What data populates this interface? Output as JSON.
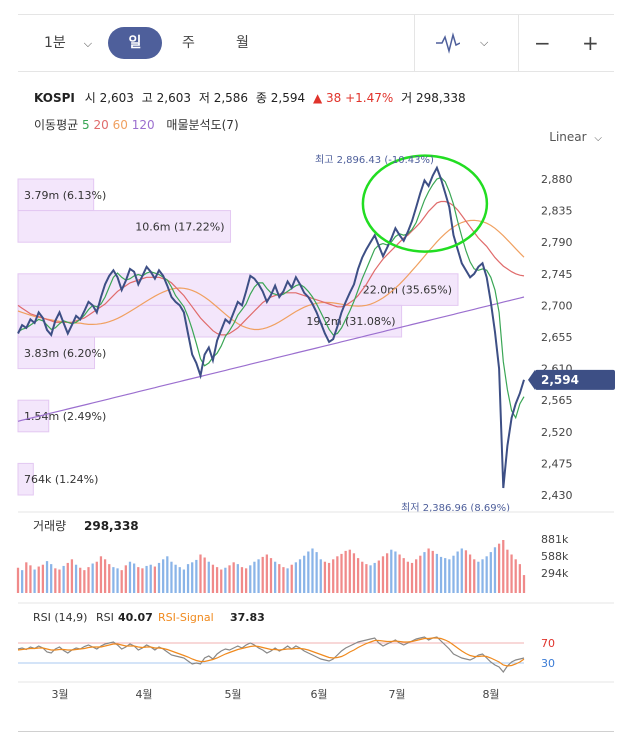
{
  "toolbar": {
    "interval_label": "1분",
    "day_label": "일",
    "week_label": "주",
    "month_label": "월",
    "minus_label": "−",
    "plus_label": "+"
  },
  "quote": {
    "name": "KOSPI",
    "open_label": "시",
    "open": "2,603",
    "high_label": "고",
    "high": "2,603",
    "low_label": "저",
    "low": "2,586",
    "close_label": "종",
    "close": "2,594",
    "change": "▲ 38 +1.47%",
    "volume_label": "거",
    "volume": "298,338"
  },
  "ma_legend": {
    "label": "이동평균",
    "p5": "5",
    "p20": "20",
    "p60": "60",
    "p120": "120",
    "vp_label": "매물분석도(7)"
  },
  "scale_label": "Linear",
  "colors": {
    "price": "#3d4f85",
    "ma5": "#3aa655",
    "ma20": "#e06b6b",
    "ma60": "#f0a060",
    "ma120": "#9b6fcf",
    "highlight": "#22dd22",
    "vol_up": "#f08a8a",
    "vol_down": "#8ab4e8",
    "rsi": "#888888",
    "rsi_signal": "#f08a1e",
    "current_tag": "#3d4f85"
  },
  "chart_data": {
    "type": "line",
    "y_ticks": [
      "2,880",
      "2,835",
      "2,790",
      "2,745",
      "2,700",
      "2,655",
      "2,610",
      "2,565",
      "2,520",
      "2,475",
      "2,430"
    ],
    "ylim": [
      2430,
      2880
    ],
    "x_ticks": [
      "3월",
      "4월",
      "5월",
      "6월",
      "7월",
      "8월"
    ],
    "current_price": "2,594",
    "high_note": "최고 2,896.43 (-10.43%)",
    "low_note": "최저 2,386.96 (8.69%)",
    "volume_profile": [
      {
        "label": "3.79m (6.13%)",
        "price_from": 2835,
        "price_to": 2880,
        "share": 6.13
      },
      {
        "label": "10.6m (17.22%)",
        "price_from": 2790,
        "price_to": 2835,
        "share": 17.22
      },
      {
        "label": "22.0m (35.65%)",
        "price_from": 2700,
        "price_to": 2745,
        "share": 35.65
      },
      {
        "label": "19.2m (31.08%)",
        "price_from": 2655,
        "price_to": 2700,
        "share": 31.08
      },
      {
        "label": "3.83m (6.20%)",
        "price_from": 2610,
        "price_to": 2655,
        "share": 6.2
      },
      {
        "label": "1.54m (2.49%)",
        "price_from": 2520,
        "price_to": 2565,
        "share": 2.49
      },
      {
        "label": "764k (1.24%)",
        "price_from": 2430,
        "price_to": 2475,
        "share": 1.24
      }
    ],
    "price_series": [
      2660,
      2672,
      2668,
      2680,
      2675,
      2690,
      2682,
      2665,
      2658,
      2678,
      2690,
      2675,
      2660,
      2672,
      2685,
      2680,
      2692,
      2705,
      2700,
      2690,
      2712,
      2730,
      2742,
      2750,
      2740,
      2722,
      2735,
      2752,
      2748,
      2730,
      2742,
      2755,
      2748,
      2738,
      2750,
      2742,
      2728,
      2712,
      2705,
      2700,
      2690,
      2660,
      2630,
      2618,
      2600,
      2630,
      2640,
      2622,
      2650,
      2665,
      2680,
      2675,
      2690,
      2705,
      2700,
      2720,
      2742,
      2738,
      2730,
      2720,
      2705,
      2715,
      2728,
      2712,
      2720,
      2734,
      2725,
      2740,
      2730,
      2718,
      2712,
      2702,
      2690,
      2675,
      2660,
      2648,
      2652,
      2670,
      2690,
      2705,
      2718,
      2730,
      2752,
      2768,
      2780,
      2790,
      2800,
      2785,
      2770,
      2782,
      2795,
      2810,
      2800,
      2792,
      2805,
      2820,
      2840,
      2860,
      2878,
      2870,
      2885,
      2896,
      2880,
      2860,
      2840,
      2800,
      2780,
      2760,
      2750,
      2740,
      2745,
      2755,
      2760,
      2740,
      2705,
      2662,
      2610,
      2440,
      2500,
      2540,
      2560,
      2575,
      2594
    ],
    "ma5_series": [
      2662,
      2666,
      2668,
      2672,
      2676,
      2680,
      2678,
      2672,
      2666,
      2668,
      2674,
      2678,
      2676,
      2674,
      2676,
      2680,
      2686,
      2694,
      2700,
      2698,
      2702,
      2712,
      2726,
      2740,
      2746,
      2740,
      2736,
      2738,
      2742,
      2744,
      2742,
      2746,
      2748,
      2746,
      2744,
      2740,
      2736,
      2726,
      2714,
      2706,
      2698,
      2684,
      2666,
      2646,
      2624,
      2614,
      2618,
      2626,
      2632,
      2642,
      2656,
      2664,
      2674,
      2686,
      2694,
      2702,
      2716,
      2726,
      2732,
      2732,
      2724,
      2718,
      2716,
      2714,
      2716,
      2720,
      2724,
      2728,
      2730,
      2726,
      2720,
      2712,
      2702,
      2690,
      2678,
      2666,
      2658,
      2660,
      2668,
      2680,
      2692,
      2706,
      2722,
      2738,
      2752,
      2766,
      2780,
      2786,
      2788,
      2786,
      2790,
      2798,
      2802,
      2800,
      2802,
      2808,
      2818,
      2834,
      2850,
      2862,
      2872,
      2880,
      2882,
      2876,
      2862,
      2844,
      2820,
      2798,
      2778,
      2762,
      2752,
      2750,
      2752,
      2750,
      2740,
      2722,
      2690,
      2620,
      2580,
      2550,
      2540,
      2560,
      2570
    ],
    "ma20_series": [
      2700,
      2696,
      2692,
      2688,
      2686,
      2684,
      2682,
      2680,
      2678,
      2676,
      2676,
      2676,
      2676,
      2676,
      2678,
      2680,
      2682,
      2686,
      2690,
      2694,
      2698,
      2702,
      2708,
      2714,
      2720,
      2724,
      2728,
      2732,
      2734,
      2736,
      2738,
      2740,
      2740,
      2740,
      2740,
      2738,
      2736,
      2732,
      2726,
      2720,
      2714,
      2706,
      2698,
      2690,
      2682,
      2676,
      2670,
      2664,
      2660,
      2658,
      2658,
      2660,
      2664,
      2668,
      2674,
      2680,
      2686,
      2692,
      2698,
      2704,
      2708,
      2712,
      2714,
      2716,
      2718,
      2718,
      2718,
      2718,
      2716,
      2714,
      2712,
      2710,
      2708,
      2706,
      2704,
      2702,
      2700,
      2698,
      2698,
      2700,
      2704,
      2708,
      2714,
      2722,
      2730,
      2740,
      2750,
      2758,
      2766,
      2772,
      2778,
      2784,
      2790,
      2796,
      2800,
      2806,
      2812,
      2818,
      2826,
      2834,
      2840,
      2846,
      2848,
      2848,
      2846,
      2842,
      2836,
      2828,
      2820,
      2812,
      2804,
      2796,
      2790,
      2784,
      2776,
      2768,
      2762,
      2756,
      2752,
      2748,
      2745,
      2743,
      2742
    ]
  },
  "volume_panel": {
    "label": "거래량",
    "value": "298,338",
    "y_ticks": [
      "881k",
      "588k",
      "294k"
    ],
    "volumes": [
      420,
      380,
      510,
      460,
      390,
      440,
      470,
      530,
      480,
      410,
      390,
      450,
      500,
      560,
      470,
      420,
      380,
      430,
      490,
      520,
      610,
      560,
      480,
      430,
      410,
      380,
      460,
      520,
      490,
      430,
      410,
      450,
      470,
      440,
      500,
      560,
      610,
      520,
      470,
      430,
      390,
      480,
      510,
      550,
      640,
      590,
      520,
      470,
      430,
      390,
      420,
      460,
      510,
      480,
      430,
      410,
      460,
      520,
      560,
      600,
      640,
      580,
      520,
      480,
      430,
      410,
      470,
      510,
      560,
      620,
      690,
      740,
      680,
      560,
      520,
      500,
      560,
      610,
      650,
      700,
      720,
      660,
      580,
      520,
      480,
      460,
      500,
      540,
      610,
      660,
      720,
      690,
      640,
      580,
      520,
      500,
      560,
      620,
      680,
      740,
      700,
      650,
      600,
      580,
      560,
      620,
      690,
      740,
      710,
      640,
      560,
      520,
      560,
      610,
      680,
      760,
      820,
      881,
      720,
      640,
      560,
      480,
      298
    ],
    "up": [
      1,
      0,
      1,
      1,
      0,
      1,
      1,
      0,
      0,
      1,
      1,
      0,
      1,
      1,
      0,
      1,
      1,
      1,
      0,
      1,
      1,
      1,
      1,
      0,
      0,
      1,
      1,
      0,
      0,
      1,
      1,
      0,
      0,
      1,
      0,
      0,
      0,
      0,
      0,
      0,
      0,
      0,
      0,
      0,
      1,
      1,
      0,
      1,
      1,
      1,
      0,
      1,
      1,
      0,
      1,
      1,
      0,
      0,
      0,
      1,
      1,
      1,
      0,
      1,
      1,
      0,
      1,
      0,
      0,
      0,
      0,
      0,
      0,
      0,
      1,
      1,
      1,
      1,
      1,
      1,
      1,
      1,
      1,
      1,
      1,
      0,
      0,
      1,
      1,
      1,
      0,
      0,
      1,
      1,
      1,
      1,
      1,
      1,
      0,
      1,
      1,
      0,
      0,
      0,
      0,
      0,
      0,
      0,
      1,
      1,
      1,
      0,
      0,
      0,
      0,
      0,
      1,
      1,
      1,
      1,
      1,
      1,
      1
    ]
  },
  "rsi_panel": {
    "label": "RSI (14,9)",
    "rsi_label": "RSI",
    "rsi_value": "40.07",
    "signal_label": "RSI-Signal",
    "signal_value": "37.83",
    "level_high": "70",
    "level_low": "30",
    "rsi_series": [
      58,
      60,
      57,
      62,
      59,
      64,
      60,
      52,
      50,
      58,
      62,
      55,
      50,
      56,
      60,
      58,
      63,
      66,
      62,
      58,
      64,
      68,
      70,
      72,
      66,
      58,
      62,
      68,
      64,
      56,
      60,
      66,
      62,
      56,
      62,
      58,
      52,
      46,
      44,
      42,
      40,
      34,
      28,
      30,
      28,
      40,
      44,
      38,
      48,
      54,
      58,
      56,
      60,
      64,
      60,
      66,
      70,
      66,
      60,
      56,
      50,
      54,
      60,
      54,
      58,
      64,
      58,
      64,
      60,
      54,
      50,
      46,
      42,
      38,
      36,
      34,
      38,
      46,
      54,
      60,
      64,
      68,
      72,
      74,
      76,
      78,
      80,
      70,
      64,
      68,
      72,
      76,
      70,
      66,
      70,
      74,
      78,
      80,
      82,
      76,
      80,
      82,
      74,
      66,
      58,
      48,
      44,
      40,
      38,
      36,
      40,
      46,
      48,
      40,
      32,
      26,
      22,
      12,
      24,
      32,
      36,
      38,
      40
    ],
    "signal_series": [
      56,
      57,
      58,
      59,
      59,
      60,
      60,
      58,
      56,
      56,
      57,
      57,
      56,
      56,
      57,
      58,
      59,
      61,
      62,
      62,
      62,
      64,
      66,
      68,
      68,
      66,
      64,
      64,
      64,
      62,
      61,
      62,
      62,
      60,
      60,
      59,
      57,
      54,
      51,
      48,
      45,
      42,
      38,
      35,
      33,
      33,
      35,
      37,
      40,
      44,
      48,
      51,
      54,
      57,
      59,
      61,
      63,
      64,
      63,
      61,
      59,
      57,
      57,
      56,
      57,
      58,
      58,
      59,
      59,
      58,
      56,
      53,
      50,
      47,
      44,
      41,
      40,
      41,
      43,
      47,
      52,
      56,
      61,
      65,
      69,
      72,
      75,
      75,
      74,
      73,
      73,
      74,
      73,
      72,
      72,
      73,
      75,
      77,
      79,
      79,
      80,
      80,
      79,
      76,
      72,
      66,
      60,
      54,
      49,
      45,
      43,
      43,
      44,
      43,
      40,
      36,
      32,
      26,
      24,
      25,
      28,
      32,
      37.83
    ]
  }
}
